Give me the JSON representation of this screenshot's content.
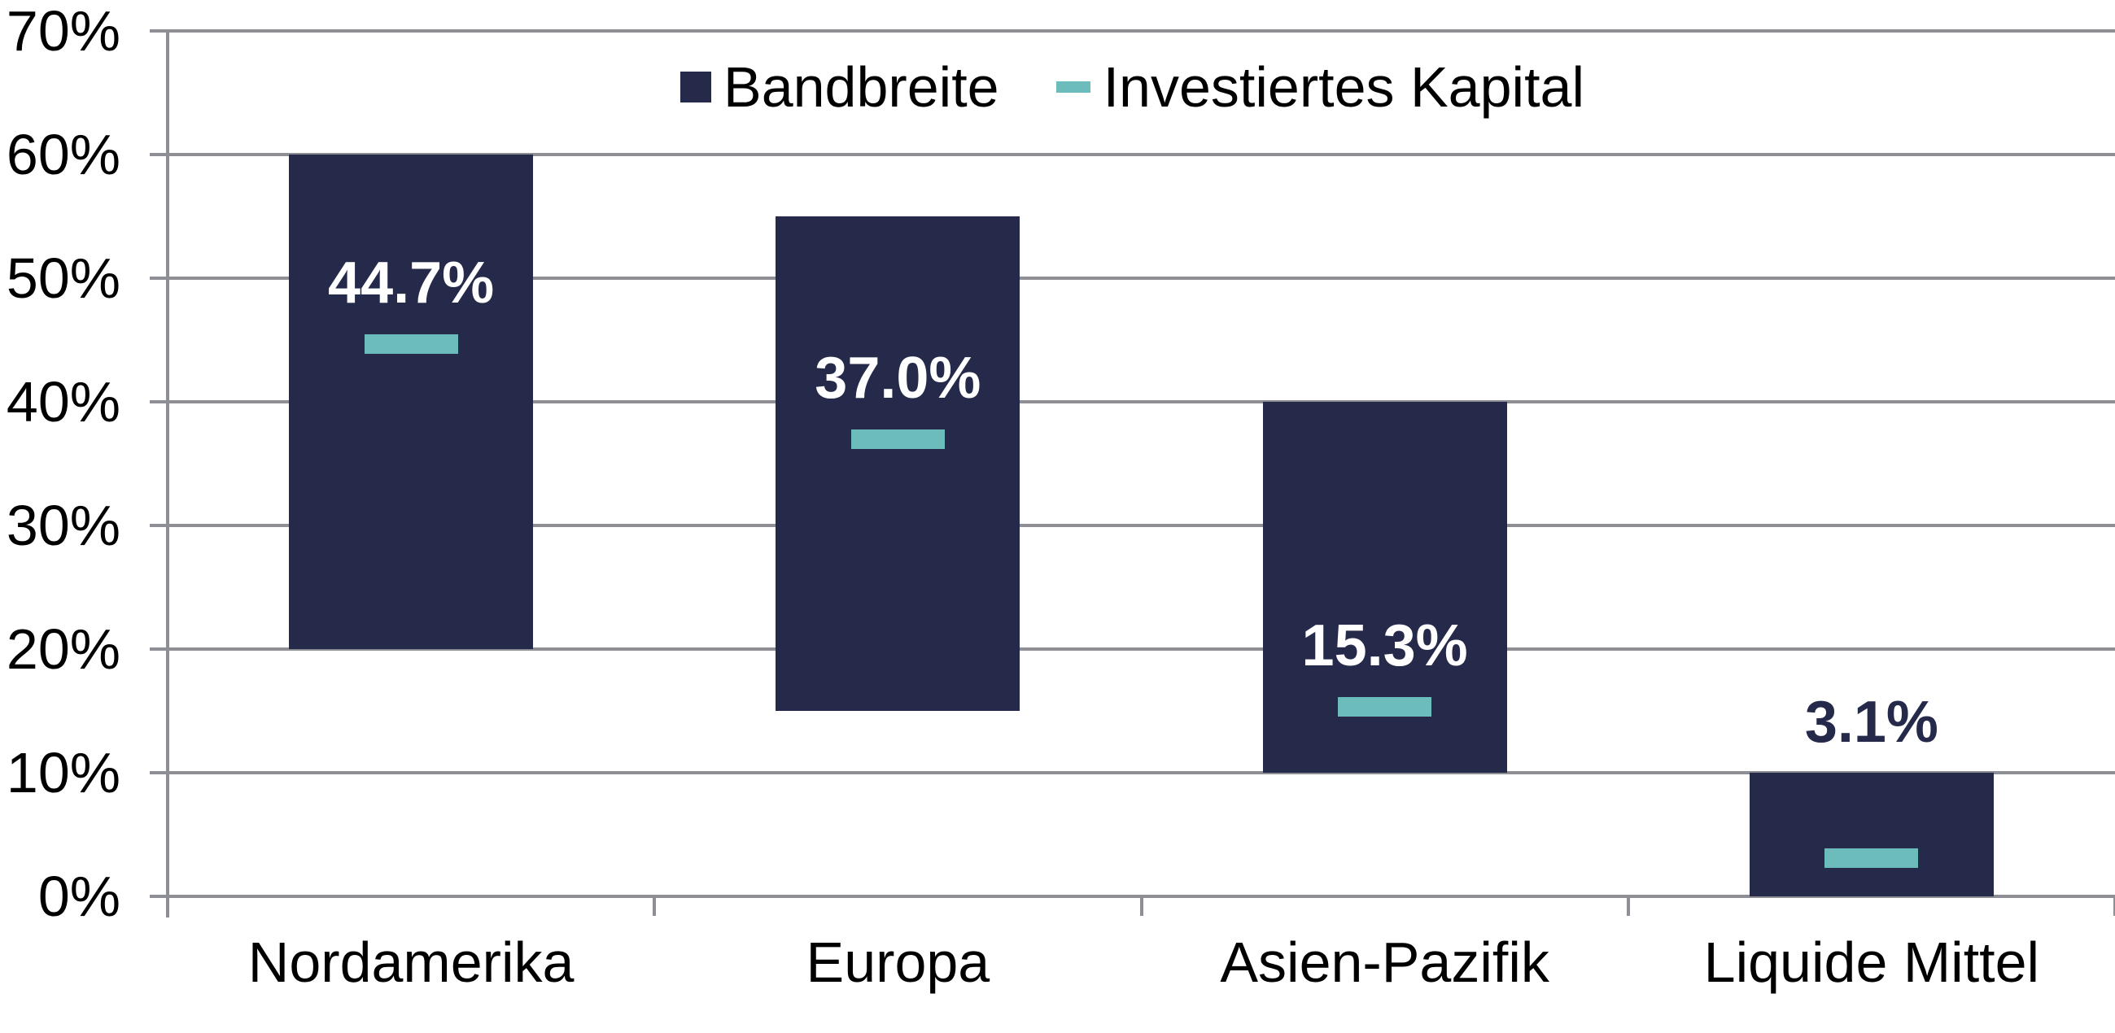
{
  "chart_data": {
    "type": "bar",
    "subtype": "floating-range-bars-with-value-markers",
    "categories": [
      "Nordamerika",
      "Europa",
      "Asien-Pazifik",
      "Liquide Mittel"
    ],
    "series": [
      {
        "name": "Bandbreite",
        "role": "range",
        "unit": "%",
        "low": [
          20,
          15,
          10,
          0
        ],
        "high": [
          60,
          55,
          40,
          10
        ]
      },
      {
        "name": "Investiertes Kapital",
        "role": "marker",
        "unit": "%",
        "values": [
          44.7,
          37.0,
          15.3,
          3.1
        ]
      }
    ],
    "data_labels": [
      "44.7%",
      "37.0%",
      "15.3%",
      "3.1%"
    ],
    "data_label_inside": [
      true,
      true,
      true,
      false
    ],
    "y_axis": {
      "min": 0,
      "max": 70,
      "step": 10,
      "tick_labels": [
        "0%",
        "10%",
        "20%",
        "30%",
        "40%",
        "50%",
        "60%",
        "70%"
      ]
    },
    "legend": {
      "position": "top-center",
      "items": [
        {
          "label": "Bandbreite",
          "swatch": "square"
        },
        {
          "label": "Investiertes Kapital",
          "swatch": "dash"
        }
      ]
    },
    "colors": {
      "bar": "#252A4B",
      "marker": "#6DBCBC",
      "gridline": "#8E8F94",
      "axis": "#8E8F94",
      "label_inside": "#FFFFFF",
      "label_outside": "#252A4B",
      "text": "#000000",
      "background": "#FFFFFF"
    },
    "grid": true,
    "title": "",
    "xlabel": "",
    "ylabel": ""
  }
}
